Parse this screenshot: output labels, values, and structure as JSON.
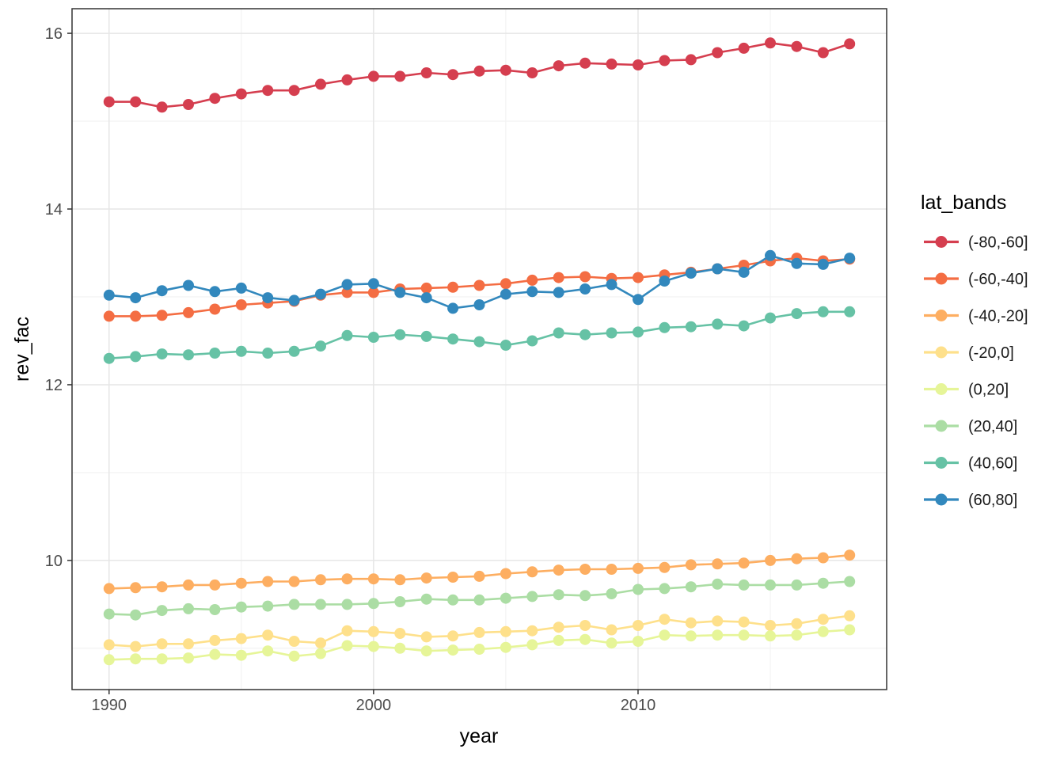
{
  "chart_data": {
    "type": "line",
    "title": "",
    "xlabel": "year",
    "ylabel": "rev_fac",
    "legend_title": "lat_bands",
    "legend_position": "right",
    "grid": true,
    "marker": "point",
    "x": [
      1990,
      1991,
      1992,
      1993,
      1994,
      1995,
      1996,
      1997,
      1998,
      1999,
      2000,
      2001,
      2002,
      2003,
      2004,
      2005,
      2006,
      2007,
      2008,
      2009,
      2010,
      2011,
      2012,
      2013,
      2014,
      2015,
      2016,
      2017,
      2018
    ],
    "x_domain": [
      1988.6,
      2019.4
    ],
    "y_domain": [
      8.53,
      16.28
    ],
    "x_ticks": [
      1990,
      2000,
      2010
    ],
    "x_minor_ticks": [
      1995,
      2005,
      2015
    ],
    "y_ticks": [
      10,
      12,
      14,
      16
    ],
    "y_minor_ticks": [
      9,
      11,
      13,
      15
    ],
    "series": [
      {
        "name": "(-80,-60]",
        "color": "#d53e4f",
        "values": [
          15.22,
          15.22,
          15.16,
          15.19,
          15.26,
          15.31,
          15.35,
          15.35,
          15.42,
          15.47,
          15.51,
          15.51,
          15.55,
          15.53,
          15.57,
          15.58,
          15.55,
          15.63,
          15.66,
          15.65,
          15.64,
          15.69,
          15.7,
          15.78,
          15.83,
          15.89,
          15.85,
          15.78,
          15.88
        ]
      },
      {
        "name": "(-60,-40]",
        "color": "#f46d43",
        "values": [
          12.78,
          12.78,
          12.79,
          12.82,
          12.86,
          12.91,
          12.93,
          12.95,
          13.02,
          13.05,
          13.05,
          13.09,
          13.1,
          13.11,
          13.13,
          13.15,
          13.19,
          13.22,
          13.23,
          13.21,
          13.22,
          13.25,
          13.28,
          13.32,
          13.36,
          13.41,
          13.44,
          13.41,
          13.43
        ]
      },
      {
        "name": "(-40,-20]",
        "color": "#fdae61",
        "values": [
          9.68,
          9.69,
          9.7,
          9.72,
          9.72,
          9.74,
          9.76,
          9.76,
          9.78,
          9.79,
          9.79,
          9.78,
          9.8,
          9.81,
          9.82,
          9.85,
          9.87,
          9.89,
          9.9,
          9.9,
          9.91,
          9.92,
          9.95,
          9.96,
          9.97,
          10.0,
          10.02,
          10.03,
          10.06
        ]
      },
      {
        "name": "(-20,0]",
        "color": "#fee08b",
        "values": [
          9.04,
          9.02,
          9.05,
          9.05,
          9.09,
          9.11,
          9.15,
          9.08,
          9.06,
          9.2,
          9.19,
          9.17,
          9.13,
          9.14,
          9.18,
          9.19,
          9.2,
          9.24,
          9.26,
          9.21,
          9.26,
          9.33,
          9.29,
          9.31,
          9.3,
          9.26,
          9.28,
          9.33,
          9.37
        ]
      },
      {
        "name": "(0,20]",
        "color": "#e6f598",
        "values": [
          8.87,
          8.88,
          8.88,
          8.89,
          8.93,
          8.92,
          8.97,
          8.91,
          8.94,
          9.03,
          9.02,
          9.0,
          8.97,
          8.98,
          8.99,
          9.01,
          9.04,
          9.09,
          9.1,
          9.06,
          9.08,
          9.15,
          9.14,
          9.15,
          9.15,
          9.14,
          9.15,
          9.19,
          9.21
        ]
      },
      {
        "name": "(20,40]",
        "color": "#abdda4",
        "values": [
          9.39,
          9.38,
          9.43,
          9.45,
          9.44,
          9.47,
          9.48,
          9.5,
          9.5,
          9.5,
          9.51,
          9.53,
          9.56,
          9.55,
          9.55,
          9.57,
          9.59,
          9.61,
          9.6,
          9.62,
          9.67,
          9.68,
          9.7,
          9.73,
          9.72,
          9.72,
          9.72,
          9.74,
          9.76
        ]
      },
      {
        "name": "(40,60]",
        "color": "#66c2a5",
        "values": [
          12.3,
          12.32,
          12.35,
          12.34,
          12.36,
          12.38,
          12.36,
          12.38,
          12.44,
          12.56,
          12.54,
          12.57,
          12.55,
          12.52,
          12.49,
          12.45,
          12.5,
          12.59,
          12.57,
          12.59,
          12.6,
          12.65,
          12.66,
          12.69,
          12.67,
          12.76,
          12.81,
          12.83,
          12.83
        ]
      },
      {
        "name": "(60,80]",
        "color": "#3288bd",
        "values": [
          13.02,
          12.99,
          13.07,
          13.13,
          13.06,
          13.1,
          12.99,
          12.96,
          13.03,
          13.14,
          13.15,
          13.05,
          12.99,
          12.87,
          12.91,
          13.03,
          13.06,
          13.05,
          13.09,
          13.14,
          12.97,
          13.18,
          13.27,
          13.32,
          13.28,
          13.47,
          13.38,
          13.37,
          13.44
        ]
      }
    ]
  },
  "theme": {
    "background": "#ffffff",
    "panel_border": "#333333",
    "grid_major": "#e6e6e6",
    "grid_minor": "#f2f2f2",
    "tick_mark": "#333333",
    "axis_text": "#4d4d4d",
    "title_text": "#000000",
    "legend_text": "#1a1a1a"
  }
}
